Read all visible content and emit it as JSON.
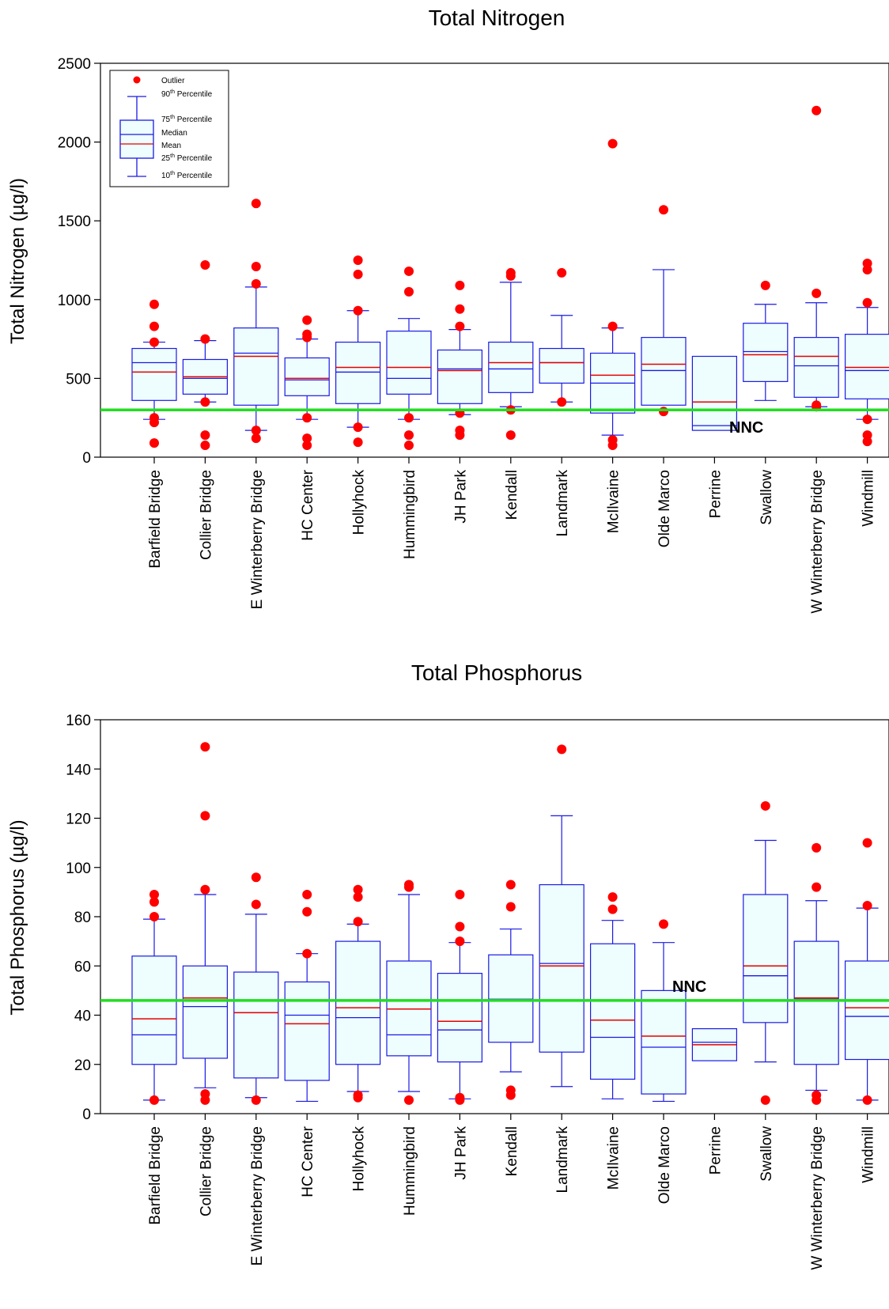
{
  "chart_data": [
    {
      "type": "box",
      "title": "Total Nitrogen",
      "ylabel": "Total Nitrogen (µg/l)",
      "ylim": [
        0,
        2500
      ],
      "yticks": [
        0,
        500,
        1000,
        1500,
        2000,
        2500
      ],
      "grid": false,
      "legend_placement": "top-left",
      "reference_line": {
        "label": "NNC",
        "value": 300,
        "color": "#22dd22"
      },
      "legend": {
        "outlier": "Outlier",
        "p90_main": "90",
        "p90_sup": "th",
        "p90_rest": " Percentile",
        "p75_main": "75",
        "p75_sup": "th",
        "p75_rest": " Percentile",
        "median": "Median",
        "mean": "Mean",
        "p25_main": "25",
        "p25_sup": "th",
        "p25_rest": " Percentile",
        "p10_main": "10",
        "p10_sup": "th",
        "p10_rest": " Percentile"
      },
      "categories": [
        "Barfield Bridge",
        "Collier Bridge",
        "E Winterberry Bridge",
        "HC Center",
        "Hollyhock",
        "Hummingbird",
        "JH Park",
        "Kendall",
        "Landmark",
        "McIlvaine",
        "Olde Marco",
        "Perrine",
        "Swallow",
        "W Winterberry Bridge",
        "Windmill"
      ],
      "boxes": [
        {
          "p10": 240,
          "p25": 360,
          "median": 600,
          "mean": 540,
          "p75": 690,
          "p90": 730,
          "outliers": [
            970,
            830,
            730,
            250,
            220,
            90
          ]
        },
        {
          "p10": 350,
          "p25": 400,
          "median": 500,
          "mean": 510,
          "p75": 620,
          "p90": 740,
          "outliers": [
            1220,
            750,
            350,
            140,
            75
          ]
        },
        {
          "p10": 170,
          "p25": 330,
          "median": 660,
          "mean": 640,
          "p75": 820,
          "p90": 1080,
          "outliers": [
            1610,
            1210,
            1100,
            170,
            120
          ]
        },
        {
          "p10": 240,
          "p25": 390,
          "median": 490,
          "mean": 500,
          "p75": 630,
          "p90": 750,
          "outliers": [
            870,
            780,
            760,
            250,
            120,
            75
          ]
        },
        {
          "p10": 190,
          "p25": 340,
          "median": 540,
          "mean": 570,
          "p75": 730,
          "p90": 930,
          "outliers": [
            1250,
            1160,
            930,
            190,
            95
          ]
        },
        {
          "p10": 240,
          "p25": 400,
          "median": 500,
          "mean": 570,
          "p75": 800,
          "p90": 880,
          "outliers": [
            1180,
            1050,
            250,
            140,
            75
          ]
        },
        {
          "p10": 270,
          "p25": 340,
          "median": 560,
          "mean": 550,
          "p75": 680,
          "p90": 810,
          "outliers": [
            1090,
            940,
            830,
            280,
            170,
            140
          ]
        },
        {
          "p10": 320,
          "p25": 410,
          "median": 560,
          "mean": 600,
          "p75": 730,
          "p90": 1110,
          "outliers": [
            1170,
            1150,
            300,
            140
          ]
        },
        {
          "p10": 350,
          "p25": 470,
          "median": 600,
          "mean": 600,
          "p75": 690,
          "p90": 900,
          "outliers": [
            1170,
            350
          ]
        },
        {
          "p10": 140,
          "p25": 280,
          "median": 470,
          "mean": 520,
          "p75": 660,
          "p90": 820,
          "outliers": [
            1990,
            830,
            110,
            75
          ]
        },
        {
          "p10": 330,
          "p25": 330,
          "median": 550,
          "mean": 590,
          "p75": 760,
          "p90": 1190,
          "outliers": [
            1570,
            290
          ]
        },
        {
          "p10": 170,
          "p25": 170,
          "median": 200,
          "mean": 350,
          "p75": 640,
          "p90": 640,
          "outliers": []
        },
        {
          "p10": 360,
          "p25": 480,
          "median": 670,
          "mean": 650,
          "p75": 850,
          "p90": 970,
          "outliers": [
            1090
          ]
        },
        {
          "p10": 320,
          "p25": 380,
          "median": 580,
          "mean": 640,
          "p75": 760,
          "p90": 980,
          "outliers": [
            2200,
            1040,
            330,
            320
          ]
        },
        {
          "p10": 240,
          "p25": 370,
          "median": 550,
          "mean": 570,
          "p75": 780,
          "p90": 950,
          "outliers": [
            1230,
            1190,
            980,
            240,
            140,
            100
          ]
        }
      ]
    },
    {
      "type": "box",
      "title": "Total Phosphorus",
      "ylabel": "Total Phosphorus (µg/l)",
      "ylim": [
        0,
        160
      ],
      "yticks": [
        0,
        20,
        40,
        60,
        80,
        100,
        120,
        140,
        160
      ],
      "grid": false,
      "reference_line": {
        "label": "NNC",
        "value": 46,
        "color": "#22dd22"
      },
      "categories": [
        "Barfield Bridge",
        "Collier Bridge",
        "E Winterberry Bridge",
        "HC Center",
        "Hollyhock",
        "Hummingbird",
        "JH Park",
        "Kendall",
        "Landmark",
        "McIlvaine",
        "Olde Marco",
        "Perrine",
        "Swallow",
        "W Winterberry Bridge",
        "Windmill"
      ],
      "boxes": [
        {
          "p10": 5.5,
          "p25": 20,
          "median": 32,
          "mean": 38.5,
          "p75": 64,
          "p90": 79,
          "outliers": [
            89,
            86,
            80,
            5.5
          ]
        },
        {
          "p10": 10.5,
          "p25": 22.5,
          "median": 43.5,
          "mean": 47,
          "p75": 60,
          "p90": 89,
          "outliers": [
            149,
            121,
            91,
            8,
            5.5
          ]
        },
        {
          "p10": 6.5,
          "p25": 14.5,
          "median": 41,
          "mean": 41,
          "p75": 57.5,
          "p90": 81,
          "outliers": [
            96,
            85,
            5.5
          ]
        },
        {
          "p10": 5,
          "p25": 13.5,
          "median": 40,
          "mean": 36.5,
          "p75": 53.5,
          "p90": 65,
          "outliers": [
            89,
            82,
            65
          ]
        },
        {
          "p10": 9,
          "p25": 20,
          "median": 39,
          "mean": 43,
          "p75": 70,
          "p90": 77,
          "outliers": [
            91,
            88,
            78,
            7.5,
            6.5
          ]
        },
        {
          "p10": 9,
          "p25": 23.5,
          "median": 32,
          "mean": 42.5,
          "p75": 62,
          "p90": 89,
          "outliers": [
            93,
            92,
            5.5
          ]
        },
        {
          "p10": 6,
          "p25": 21,
          "median": 34,
          "mean": 37.5,
          "p75": 57,
          "p90": 69.5,
          "outliers": [
            89,
            76,
            70,
            6.5,
            5.5
          ]
        },
        {
          "p10": 17,
          "p25": 29,
          "median": 46.5,
          "mean": 46,
          "p75": 64.5,
          "p90": 75,
          "outliers": [
            93,
            84,
            9.5,
            7.5
          ]
        },
        {
          "p10": 11,
          "p25": 25,
          "median": 61,
          "mean": 60,
          "p75": 93,
          "p90": 121,
          "outliers": [
            148
          ]
        },
        {
          "p10": 6,
          "p25": 14,
          "median": 31,
          "mean": 38,
          "p75": 69,
          "p90": 78.5,
          "outliers": [
            88,
            83
          ]
        },
        {
          "p10": 5,
          "p25": 8,
          "median": 27,
          "mean": 31.5,
          "p75": 50,
          "p90": 69.5,
          "outliers": [
            77
          ]
        },
        {
          "p10": 21.5,
          "p25": 21.5,
          "median": 29,
          "mean": 28,
          "p75": 34.5,
          "p90": 34.5,
          "outliers": []
        },
        {
          "p10": 21,
          "p25": 37,
          "median": 56,
          "mean": 60,
          "p75": 89,
          "p90": 111,
          "outliers": [
            125,
            5.5
          ]
        },
        {
          "p10": 9.5,
          "p25": 20,
          "median": 46.5,
          "mean": 47,
          "p75": 70,
          "p90": 86.5,
          "outliers": [
            108,
            92,
            7.5,
            5.5
          ]
        },
        {
          "p10": 5.5,
          "p25": 22,
          "median": 39.5,
          "mean": 43,
          "p75": 62,
          "p90": 83.5,
          "outliers": [
            110,
            84.5,
            5.5
          ]
        }
      ]
    }
  ],
  "colors": {
    "box_stroke": "#1a1ae6",
    "box_fill": "#eefefe",
    "median": "#1a1ae6",
    "mean": "#e60000",
    "outlier": "#ff0000",
    "reference": "#22dd22"
  }
}
